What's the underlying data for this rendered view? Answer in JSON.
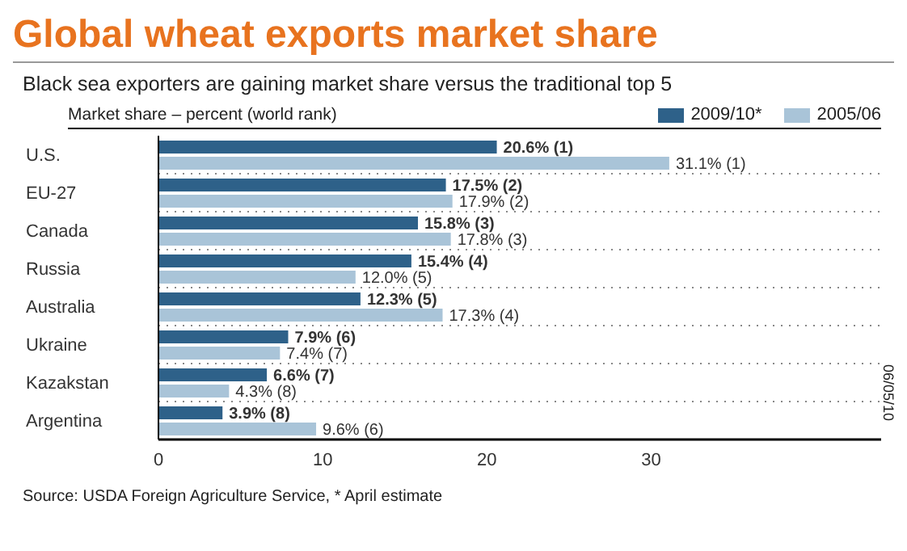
{
  "chart_data": {
    "type": "bar",
    "orientation": "horizontal",
    "title": "Global wheat exports market share",
    "subtitle": "Black sea exporters are gaining market share versus the traditional top 5",
    "xlabel": "Market share – percent (world rank)",
    "categories": [
      "U.S.",
      "EU-27",
      "Canada",
      "Russia",
      "Australia",
      "Ukraine",
      "Kazakstan",
      "Argentina"
    ],
    "series": [
      {
        "name": "2009/10*",
        "color": "#2e6189",
        "values": [
          20.6,
          17.5,
          15.8,
          15.4,
          12.3,
          7.9,
          6.6,
          3.9
        ],
        "value_labels": [
          "20.6% (1)",
          "17.5% (2)",
          "15.8% (3)",
          "15.4% (4)",
          "12.3% (5)",
          "7.9% (6)",
          "6.6% (7)",
          "3.9% (8)"
        ]
      },
      {
        "name": "2005/06",
        "color": "#a9c4d8",
        "values": [
          31.1,
          17.9,
          17.8,
          12.0,
          17.3,
          7.4,
          4.3,
          9.6
        ],
        "value_labels": [
          "31.1% (1)",
          "17.9% (2)",
          "17.8% (3)",
          "12.0% (5)",
          "17.3% (4)",
          "7.4% (7)",
          "4.3% (8)",
          "9.6% (6)"
        ]
      }
    ],
    "xlim": [
      0,
      44
    ],
    "xticks": [
      0,
      10,
      20,
      30
    ],
    "grid": "y",
    "legend": "top right",
    "annotations": [
      "Source: USDA Foreign Agriculture Service, * April estimate",
      "06/05/10"
    ]
  }
}
